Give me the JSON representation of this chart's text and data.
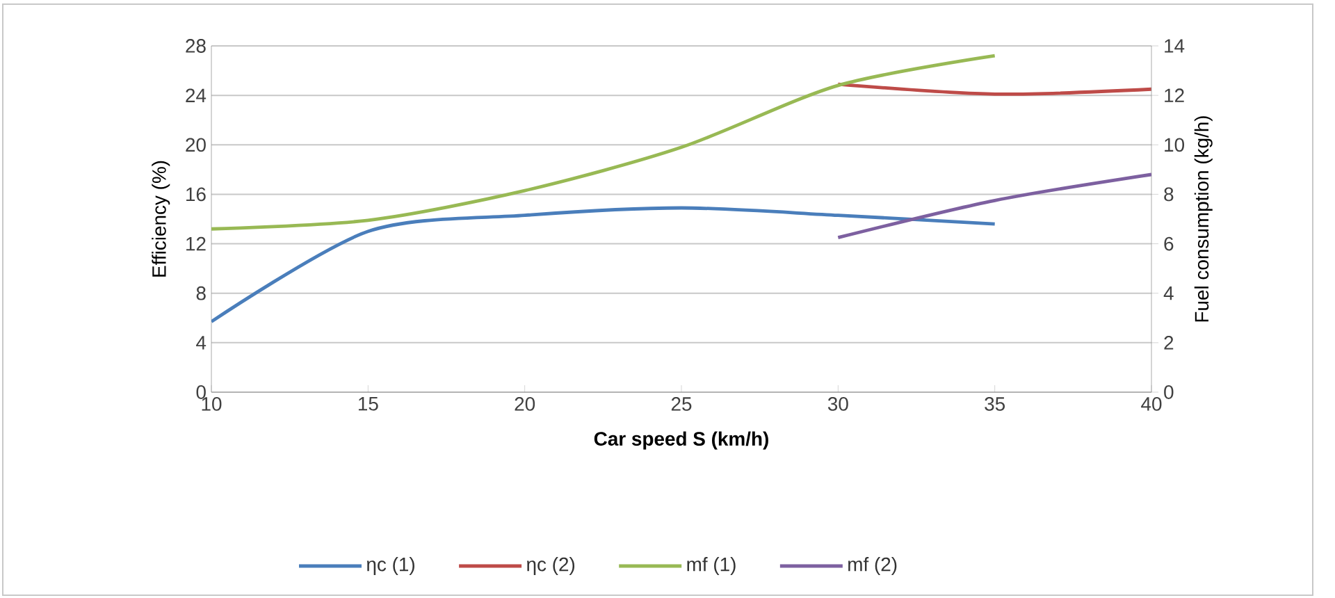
{
  "chart_data": {
    "type": "line",
    "xlabel": "Car speed S (km/h)",
    "ylabel": "Efficiency (%)",
    "y2label": "Fuel consumption (kg/h)",
    "xlim": [
      10,
      40
    ],
    "xticks": [
      10,
      15,
      20,
      25,
      30,
      35,
      40
    ],
    "ylim": [
      0,
      28
    ],
    "yticks": [
      0,
      4,
      8,
      12,
      16,
      20,
      24,
      28
    ],
    "y2lim": [
      0,
      14
    ],
    "y2ticks": [
      0,
      2,
      4,
      6,
      8,
      10,
      12,
      14
    ],
    "grid": "y",
    "legend": "bottom",
    "series": [
      {
        "name": "ηc (1)",
        "color": "#4a7ebb",
        "x": [
          10,
          15,
          20,
          25,
          30,
          35
        ],
        "values": [
          5.7,
          13.0,
          14.3,
          14.9,
          14.3,
          13.6
        ]
      },
      {
        "name": "ηc (2)",
        "color": "#be4b48",
        "x": [
          30,
          35,
          40
        ],
        "values": [
          24.9,
          24.1,
          24.5
        ]
      },
      {
        "name": "mf (1)",
        "color": "#98b954",
        "axis": "y2",
        "x": [
          10,
          15,
          20,
          25,
          30,
          35
        ],
        "values": [
          6.6,
          6.95,
          8.15,
          9.9,
          12.4,
          13.6
        ]
      },
      {
        "name": "mf (2)",
        "color": "#7d60a0",
        "axis": "y2",
        "x": [
          30,
          35,
          40
        ],
        "values": [
          6.25,
          7.75,
          8.8
        ]
      }
    ]
  }
}
